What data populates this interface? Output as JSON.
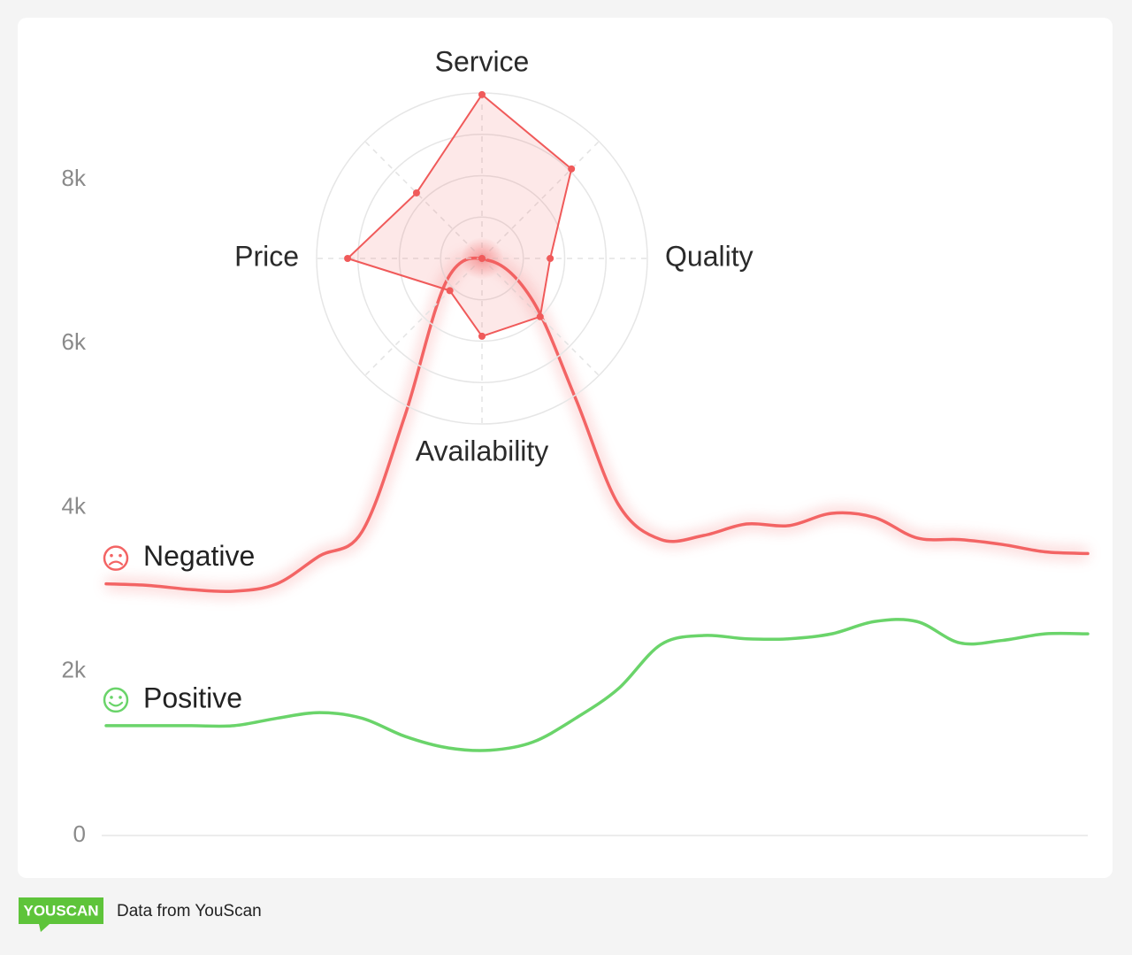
{
  "chart_data": [
    {
      "type": "line",
      "ylim": [
        0,
        9000
      ],
      "yticks": [
        0,
        {
          "value": 2000,
          "label": "2k"
        },
        {
          "value": 4000,
          "label": "4k"
        },
        {
          "value": 6000,
          "label": "6k"
        },
        {
          "value": 8000,
          "label": "8k"
        }
      ],
      "grid": false,
      "series": [
        {
          "name": "Negative",
          "color": "#f36464",
          "values": [
            3070,
            3050,
            3000,
            2980,
            3070,
            3410,
            3710,
            5120,
            6790,
            7010,
            6520,
            5330,
            4040,
            3610,
            3660,
            3800,
            3780,
            3930,
            3880,
            3630,
            3610,
            3550,
            3460,
            3440
          ]
        },
        {
          "name": "Positive",
          "color": "#6ad46a",
          "values": [
            1340,
            1340,
            1340,
            1340,
            1430,
            1500,
            1430,
            1210,
            1070,
            1040,
            1140,
            1430,
            1790,
            2330,
            2440,
            2400,
            2400,
            2460,
            2610,
            2610,
            2350,
            2380,
            2460,
            2460
          ]
        }
      ]
    },
    {
      "type": "radar",
      "categories": [
        "Service",
        null,
        "Quality",
        null,
        "Availability",
        null,
        "Price",
        null
      ],
      "values": [
        3.96,
        3.06,
        1.65,
        1.99,
        1.88,
        1.1,
        3.25,
        2.24
      ],
      "color": "#f05a5a",
      "rlim": [
        0,
        4
      ],
      "rticks": [
        1,
        2,
        3,
        4
      ]
    }
  ],
  "footer": {
    "logo": "YOUSCAN",
    "text": "Data from YouScan"
  }
}
